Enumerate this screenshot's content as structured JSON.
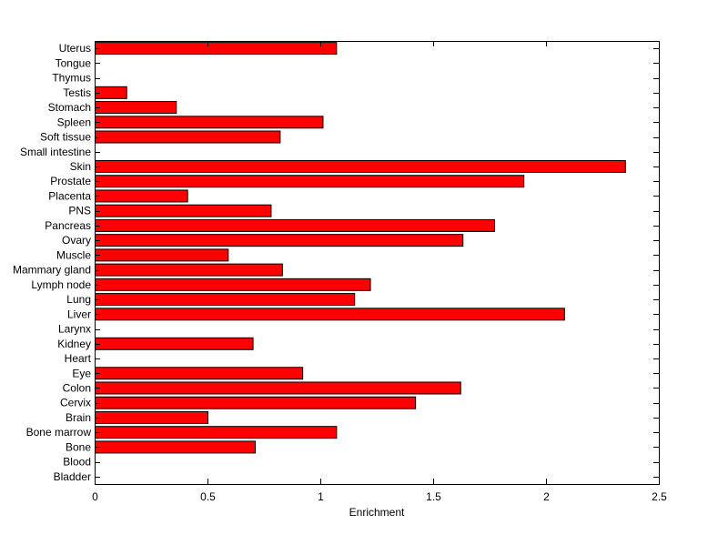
{
  "chart_data": {
    "type": "bar",
    "orientation": "horizontal",
    "title": "",
    "xlabel": "Enrichment",
    "ylabel": "",
    "xlim": [
      0,
      2.5
    ],
    "xticks": [
      "0",
      "0.5",
      "1",
      "1.5",
      "2",
      "2.5"
    ],
    "grid": false,
    "legend": "none",
    "bar_color": "#ff0000",
    "categories": [
      "Uterus",
      "Tongue",
      "Thymus",
      "Testis",
      "Stomach",
      "Spleen",
      "Soft tissue",
      "Small intestine",
      "Skin",
      "Prostate",
      "Placenta",
      "PNS",
      "Pancreas",
      "Ovary",
      "Muscle",
      "Mammary gland",
      "Lymph node",
      "Lung",
      "Liver",
      "Larynx",
      "Kidney",
      "Heart",
      "Eye",
      "Colon",
      "Cervix",
      "Brain",
      "Bone marrow",
      "Bone",
      "Blood",
      "Bladder"
    ],
    "values": [
      1.07,
      0,
      0,
      0.14,
      0.36,
      1.01,
      0.82,
      0,
      2.35,
      1.9,
      0.41,
      0.78,
      1.77,
      1.63,
      0.59,
      0.83,
      1.22,
      1.15,
      2.08,
      0,
      0.7,
      0,
      0.92,
      1.62,
      1.42,
      0.5,
      1.07,
      0.71,
      0,
      0
    ]
  }
}
